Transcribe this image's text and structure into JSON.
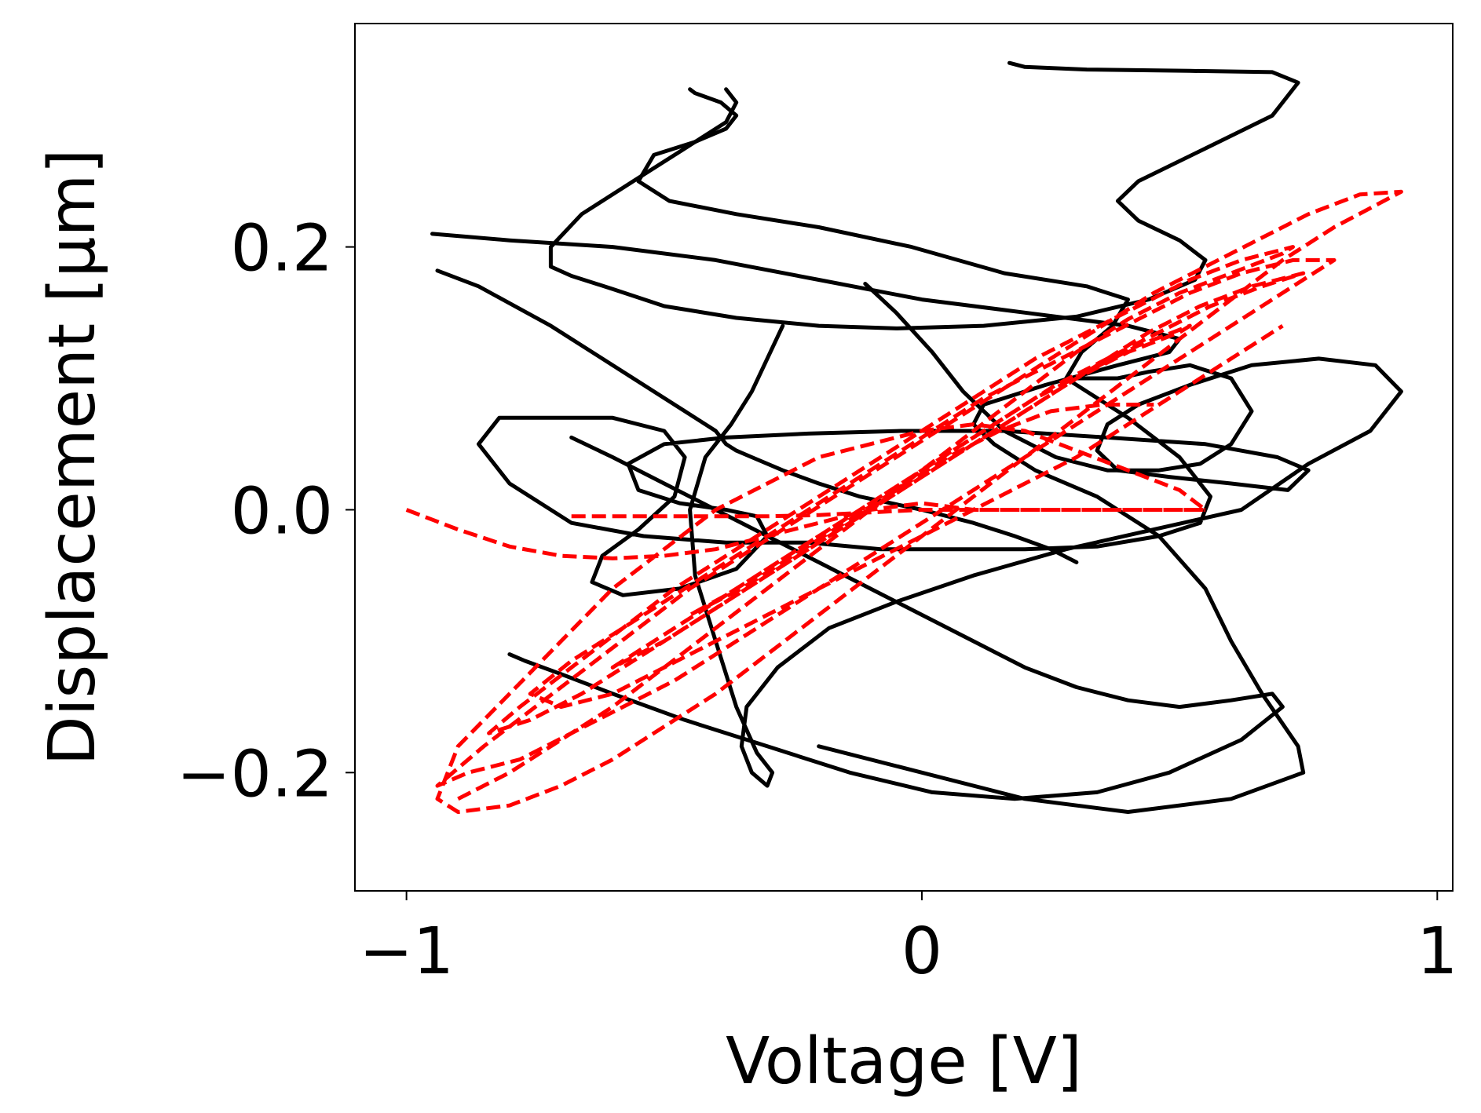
{
  "chart_data": {
    "type": "line",
    "title": "",
    "xlabel": "Voltage [V]",
    "ylabel": "Displacement [μm]",
    "xlim": [
      -1.1,
      1.03
    ],
    "ylim": [
      -0.29,
      0.37
    ],
    "xticks": [
      -1,
      0,
      1
    ],
    "xtick_labels": [
      "−1",
      "0",
      "1"
    ],
    "yticks": [
      -0.2,
      0.0,
      0.2
    ],
    "ytick_labels": [
      "−0.2",
      "0.0",
      "0.2"
    ],
    "grid": false,
    "series": [
      {
        "style": "solid",
        "color": "#000000",
        "x": [
          -0.27,
          -0.3,
          -0.33,
          -0.37,
          -0.42,
          -0.45,
          -0.44,
          -0.4,
          -0.36,
          -0.32,
          -0.29,
          -0.3,
          -0.33,
          -0.35,
          -0.34,
          -0.28,
          -0.18,
          -0.05,
          0.1,
          0.28,
          0.45,
          0.62,
          0.75,
          0.87,
          0.93,
          0.88,
          0.77,
          0.64,
          0.52,
          0.42,
          0.36,
          0.34,
          0.38,
          0.48,
          0.6,
          0.71,
          0.75,
          0.69,
          0.55,
          0.36,
          0.16,
          -0.04,
          -0.22,
          -0.38,
          -0.5,
          -0.57,
          -0.55,
          -0.47,
          -0.38,
          -0.32,
          -0.3,
          -0.36,
          -0.47,
          -0.58,
          -0.64,
          -0.62,
          -0.55,
          -0.48,
          -0.46,
          -0.5,
          -0.6,
          -0.72,
          -0.82,
          -0.86,
          -0.8,
          -0.68,
          -0.54,
          -0.38,
          -0.22,
          -0.08,
          0.06,
          0.2,
          0.34,
          0.46,
          0.54,
          0.56,
          0.5,
          0.4,
          0.32,
          0.28,
          0.31,
          0.37,
          0.4,
          0.32,
          0.16,
          -0.02,
          -0.2,
          -0.36,
          -0.49,
          -0.55,
          -0.52,
          -0.44,
          -0.38,
          -0.36,
          -0.39,
          -0.44,
          -0.45
        ],
        "y": [
          0.14,
          0.115,
          0.09,
          0.065,
          0.04,
          0.0,
          -0.05,
          -0.1,
          -0.15,
          -0.185,
          -0.2,
          -0.21,
          -0.2,
          -0.18,
          -0.15,
          -0.12,
          -0.09,
          -0.07,
          -0.05,
          -0.03,
          -0.015,
          0.0,
          0.035,
          0.06,
          0.09,
          0.11,
          0.115,
          0.11,
          0.095,
          0.08,
          0.065,
          0.045,
          0.03,
          0.025,
          0.02,
          0.015,
          0.03,
          0.04,
          0.05,
          0.055,
          0.06,
          0.06,
          0.058,
          0.055,
          0.05,
          0.035,
          0.015,
          0.005,
          0.0,
          -0.005,
          -0.02,
          -0.045,
          -0.06,
          -0.065,
          -0.055,
          -0.035,
          -0.015,
          0.01,
          0.04,
          0.06,
          0.07,
          0.07,
          0.07,
          0.05,
          0.02,
          -0.01,
          -0.02,
          -0.025,
          -0.025,
          -0.03,
          -0.03,
          -0.03,
          -0.028,
          -0.02,
          -0.01,
          0.01,
          0.04,
          0.07,
          0.09,
          0.1,
          0.12,
          0.14,
          0.16,
          0.17,
          0.18,
          0.2,
          0.215,
          0.225,
          0.235,
          0.25,
          0.27,
          0.28,
          0.29,
          0.3,
          0.31,
          0.317,
          0.32
        ]
      },
      {
        "style": "solid",
        "color": "#000000",
        "x": [
          -0.95,
          -0.8,
          -0.6,
          -0.4,
          -0.2,
          0.0,
          0.2,
          0.4,
          0.5,
          0.48,
          0.38,
          0.24,
          0.12,
          0.1,
          0.14,
          0.22,
          0.34,
          0.46,
          0.55,
          0.6,
          0.66,
          0.73,
          0.74,
          0.6,
          0.4,
          0.2,
          0.0,
          -0.2
        ],
        "y": [
          0.21,
          0.205,
          0.2,
          0.19,
          0.175,
          0.16,
          0.15,
          0.14,
          0.13,
          0.12,
          0.11,
          0.095,
          0.08,
          0.065,
          0.05,
          0.03,
          0.01,
          -0.02,
          -0.06,
          -0.1,
          -0.14,
          -0.18,
          -0.2,
          -0.22,
          -0.23,
          -0.22,
          -0.2,
          -0.18
        ]
      },
      {
        "style": "solid",
        "color": "#000000",
        "x": [
          0.17,
          0.2,
          0.32,
          0.52,
          0.68,
          0.73,
          0.68,
          0.55,
          0.42,
          0.38,
          0.42,
          0.5,
          0.55,
          0.53,
          0.44,
          0.3,
          0.12,
          -0.05,
          -0.2,
          -0.36,
          -0.5,
          -0.6,
          -0.68,
          -0.72,
          -0.72,
          -0.66,
          -0.56,
          -0.46,
          -0.38,
          -0.36,
          -0.38
        ],
        "y": [
          0.34,
          0.337,
          0.335,
          0.334,
          0.333,
          0.325,
          0.3,
          0.275,
          0.25,
          0.235,
          0.22,
          0.205,
          0.19,
          0.175,
          0.16,
          0.147,
          0.14,
          0.138,
          0.14,
          0.146,
          0.155,
          0.168,
          0.178,
          0.185,
          0.2,
          0.225,
          0.25,
          0.275,
          0.295,
          0.31,
          0.32
        ]
      },
      {
        "style": "solid",
        "color": "#000000",
        "x": [
          -0.94,
          -0.86,
          -0.72,
          -0.56,
          -0.46,
          -0.4,
          -0.38,
          -0.36,
          -0.33,
          -0.27,
          -0.2,
          -0.12,
          0.0,
          0.1,
          0.18,
          0.25,
          0.3
        ],
        "y": [
          0.182,
          0.17,
          0.14,
          0.1,
          0.075,
          0.06,
          0.05,
          0.045,
          0.04,
          0.03,
          0.02,
          0.01,
          0.0,
          -0.01,
          -0.02,
          -0.03,
          -0.04
        ]
      },
      {
        "style": "solid",
        "color": "#000000",
        "x": [
          -0.68,
          -0.6,
          -0.5,
          -0.4,
          -0.3,
          -0.2,
          -0.1,
          0.0,
          0.1,
          0.2,
          0.3,
          0.4,
          0.5,
          0.6,
          0.68,
          0.7,
          0.62,
          0.48,
          0.34,
          0.18,
          0.02,
          -0.14,
          -0.3,
          -0.46,
          -0.6,
          -0.7,
          -0.77,
          -0.8
        ],
        "y": [
          0.055,
          0.04,
          0.02,
          0.0,
          -0.02,
          -0.04,
          -0.06,
          -0.08,
          -0.1,
          -0.12,
          -0.135,
          -0.145,
          -0.15,
          -0.145,
          -0.14,
          -0.15,
          -0.175,
          -0.2,
          -0.215,
          -0.22,
          -0.215,
          -0.2,
          -0.18,
          -0.16,
          -0.14,
          -0.125,
          -0.115,
          -0.11
        ]
      },
      {
        "style": "solid",
        "color": "#000000",
        "x": [
          -0.11,
          -0.05,
          0.02,
          0.08,
          0.16,
          0.26,
          0.36,
          0.46,
          0.54,
          0.6,
          0.64,
          0.6,
          0.52,
          0.44,
          0.38,
          0.34,
          0.3
        ],
        "y": [
          0.172,
          0.15,
          0.12,
          0.09,
          0.06,
          0.04,
          0.03,
          0.03,
          0.035,
          0.05,
          0.075,
          0.1,
          0.11,
          0.105,
          0.1,
          0.1,
          0.1
        ]
      },
      {
        "style": "dashed",
        "color": "#ff0000",
        "x": [
          -1.0,
          -0.9,
          -0.8,
          -0.7,
          -0.6,
          -0.5,
          -0.4,
          -0.3,
          -0.2,
          -0.1,
          0.0,
          0.1,
          0.2,
          0.3,
          0.4,
          0.5,
          0.55,
          0.5,
          0.4,
          0.3,
          0.2,
          0.1,
          0.0,
          -0.1,
          -0.2,
          -0.3,
          -0.4,
          -0.5,
          -0.6,
          -0.7,
          -0.8,
          -0.9,
          -0.94,
          -0.9,
          -0.8,
          -0.7,
          -0.6,
          -0.5,
          -0.4,
          -0.3,
          -0.2,
          -0.1,
          0.0,
          0.1,
          0.2,
          0.3,
          0.4,
          0.5,
          0.6,
          0.7,
          0.8,
          0.93,
          0.85,
          0.75,
          0.65,
          0.55,
          0.45,
          0.35,
          0.25,
          0.15,
          0.05,
          -0.05,
          -0.15,
          -0.25,
          -0.35,
          -0.45,
          -0.55,
          -0.65,
          -0.75,
          -0.85,
          -0.94,
          -0.88,
          -0.78,
          -0.68,
          -0.58,
          -0.48,
          -0.38,
          -0.28,
          -0.18,
          -0.08,
          0.02,
          0.12,
          0.22,
          0.32,
          0.42,
          0.52,
          0.62,
          0.72,
          0.8,
          0.72,
          0.62,
          0.52,
          0.42,
          0.32,
          0.22,
          0.12,
          0.02,
          -0.08,
          -0.18,
          -0.28,
          -0.38,
          -0.48,
          -0.58,
          -0.68,
          -0.76,
          -0.7,
          -0.6,
          -0.5,
          -0.4,
          -0.3,
          -0.2,
          -0.1,
          0.0,
          0.1,
          0.2,
          0.3,
          0.4,
          0.5,
          0.6,
          0.7
        ],
        "y": [
          0.0,
          -0.015,
          -0.028,
          -0.035,
          -0.037,
          -0.035,
          -0.03,
          -0.02,
          -0.01,
          0.0,
          0.005,
          0.0,
          0.0,
          0.0,
          0.0,
          0.0,
          0.0,
          0.015,
          0.03,
          0.045,
          0.06,
          0.065,
          0.06,
          0.05,
          0.04,
          0.02,
          0.0,
          -0.03,
          -0.06,
          -0.1,
          -0.14,
          -0.18,
          -0.22,
          -0.23,
          -0.225,
          -0.21,
          -0.19,
          -0.165,
          -0.14,
          -0.11,
          -0.08,
          -0.05,
          -0.02,
          0.01,
          0.04,
          0.07,
          0.1,
          0.13,
          0.16,
          0.19,
          0.215,
          0.242,
          0.24,
          0.225,
          0.205,
          0.185,
          0.165,
          0.14,
          0.115,
          0.09,
          0.065,
          0.04,
          0.015,
          -0.01,
          -0.035,
          -0.06,
          -0.09,
          -0.12,
          -0.15,
          -0.18,
          -0.21,
          -0.2,
          -0.19,
          -0.17,
          -0.15,
          -0.13,
          -0.105,
          -0.08,
          -0.055,
          -0.03,
          -0.005,
          0.02,
          0.045,
          0.07,
          0.095,
          0.12,
          0.145,
          0.17,
          0.19,
          0.19,
          0.18,
          0.165,
          0.145,
          0.125,
          0.105,
          0.085,
          0.06,
          0.035,
          0.01,
          -0.015,
          -0.04,
          -0.065,
          -0.09,
          -0.115,
          -0.14,
          -0.15,
          -0.14,
          -0.12,
          -0.1,
          -0.08,
          -0.06,
          -0.04,
          -0.02,
          0.0,
          0.02,
          0.04,
          0.065,
          0.09,
          0.115,
          0.14
        ]
      },
      {
        "style": "dashed",
        "color": "#ff0000",
        "x": [
          -0.9,
          -0.8,
          -0.7,
          -0.6,
          -0.5,
          -0.4,
          -0.3,
          -0.2,
          -0.1,
          0.0,
          0.1,
          0.2,
          0.3,
          0.4,
          0.5,
          0.6,
          0.7,
          0.72,
          0.62,
          0.52,
          0.42,
          0.32,
          0.22,
          0.12,
          0.02,
          -0.08,
          -0.18,
          -0.28,
          -0.38,
          -0.48,
          -0.58,
          -0.68,
          -0.78,
          -0.84,
          -0.76,
          -0.66,
          -0.56,
          -0.46,
          -0.36,
          -0.26,
          -0.16,
          -0.06,
          0.04,
          0.14,
          0.24,
          0.34,
          0.44,
          0.54,
          0.64,
          0.74,
          0.66,
          0.56,
          0.46,
          0.36,
          0.26,
          0.16,
          0.06,
          -0.04,
          -0.14,
          -0.24,
          -0.34,
          -0.44,
          -0.54,
          -0.6,
          -0.5,
          -0.4,
          -0.3,
          -0.2,
          -0.1,
          0.0,
          0.1,
          0.2,
          0.3,
          0.4,
          0.5,
          0.52,
          0.42,
          0.32,
          0.22,
          0.12,
          0.02,
          -0.08,
          -0.18,
          -0.28,
          -0.38,
          -0.45,
          -0.35,
          -0.25,
          -0.15,
          -0.05,
          0.05,
          0.15,
          0.25,
          0.35,
          0.45
        ],
        "y": [
          -0.22,
          -0.2,
          -0.175,
          -0.15,
          -0.12,
          -0.09,
          -0.06,
          -0.03,
          0.0,
          0.03,
          0.06,
          0.09,
          0.12,
          0.145,
          0.165,
          0.18,
          0.195,
          0.2,
          0.19,
          0.175,
          0.155,
          0.135,
          0.115,
          0.09,
          0.065,
          0.04,
          0.015,
          -0.01,
          -0.035,
          -0.06,
          -0.09,
          -0.12,
          -0.15,
          -0.17,
          -0.16,
          -0.14,
          -0.115,
          -0.09,
          -0.065,
          -0.04,
          -0.015,
          0.01,
          0.035,
          0.06,
          0.085,
          0.11,
          0.135,
          0.155,
          0.17,
          0.18,
          0.17,
          0.155,
          0.135,
          0.115,
          0.095,
          0.07,
          0.045,
          0.02,
          -0.005,
          -0.03,
          -0.055,
          -0.08,
          -0.105,
          -0.12,
          -0.1,
          -0.075,
          -0.05,
          -0.025,
          0.0,
          0.025,
          0.05,
          0.075,
          0.1,
          0.12,
          0.135,
          0.14,
          0.125,
          0.105,
          0.085,
          0.06,
          0.035,
          0.01,
          -0.015,
          -0.04,
          -0.065,
          -0.08,
          -0.06,
          -0.035,
          -0.01,
          0.015,
          0.04,
          0.06,
          0.075,
          0.08,
          0.08
        ]
      },
      {
        "style": "dashed",
        "color": "#ff0000",
        "x": [
          -0.68,
          -0.6,
          -0.5,
          -0.4,
          -0.3,
          -0.2,
          -0.1,
          0.0,
          0.1,
          0.2,
          0.3,
          0.4,
          0.5,
          0.55
        ],
        "y": [
          -0.005,
          -0.005,
          -0.005,
          -0.005,
          -0.005,
          -0.004,
          -0.002,
          0.0,
          0.0,
          0.0,
          0.0,
          0.0,
          0.0,
          0.0
        ]
      }
    ]
  }
}
